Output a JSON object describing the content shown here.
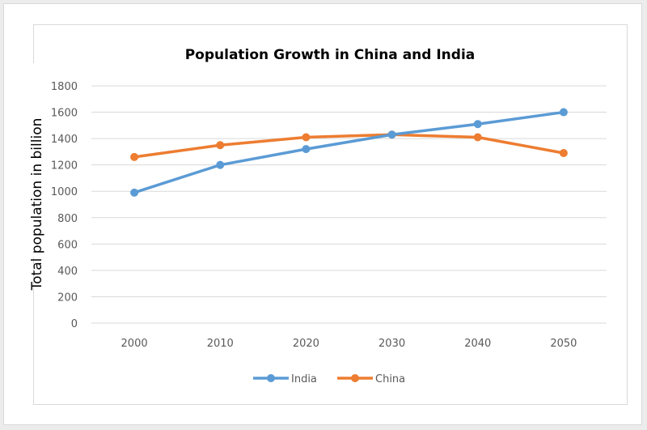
{
  "chart_data": {
    "type": "line",
    "title": "Population Growth in China and India",
    "xlabel": "",
    "ylabel": "Total population in billion",
    "categories": [
      "2000",
      "2010",
      "2020",
      "2030",
      "2040",
      "2050"
    ],
    "yticks": [
      "0",
      "200",
      "400",
      "600",
      "800",
      "1000",
      "1200",
      "1400",
      "1600",
      "1800"
    ],
    "ylim": [
      0,
      1800
    ],
    "grid": true,
    "legend_position": "bottom",
    "series": [
      {
        "name": "India",
        "color": "#5b9bd5",
        "values": [
          990,
          1200,
          1320,
          1430,
          1510,
          1600
        ]
      },
      {
        "name": "China",
        "color": "#ed7d31",
        "values": [
          1260,
          1350,
          1410,
          1430,
          1410,
          1290
        ]
      }
    ]
  }
}
